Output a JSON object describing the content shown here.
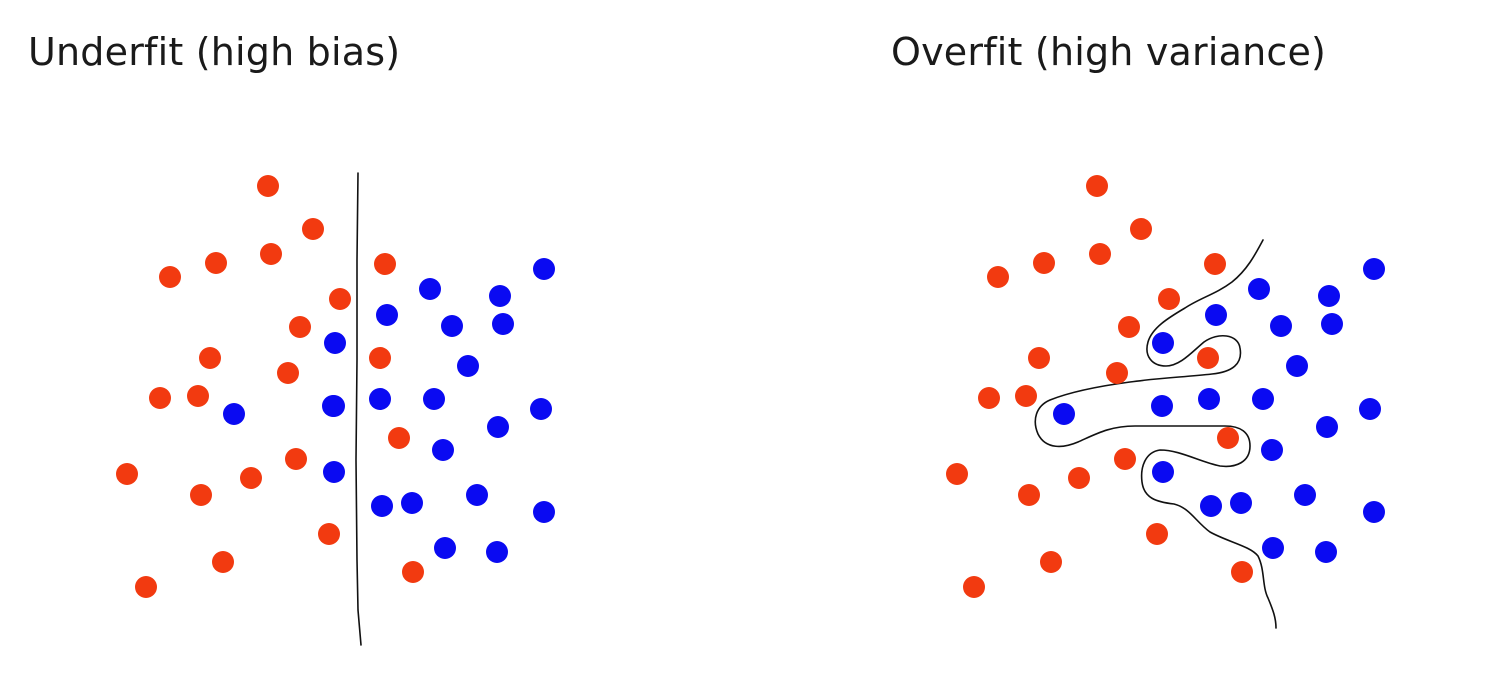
{
  "panels": [
    {
      "title": "Underfit (high bias)",
      "boundary": "straight-vertical-line",
      "red_points": 22,
      "blue_points": 24
    },
    {
      "title": "Overfit (high variance)",
      "boundary": "wiggly-curve",
      "red_points": 22,
      "blue_points": 24
    }
  ],
  "colors": {
    "red": "#f23a10",
    "blue": "#0a0af2",
    "line": "#111111",
    "text": "#1a1a1a"
  }
}
